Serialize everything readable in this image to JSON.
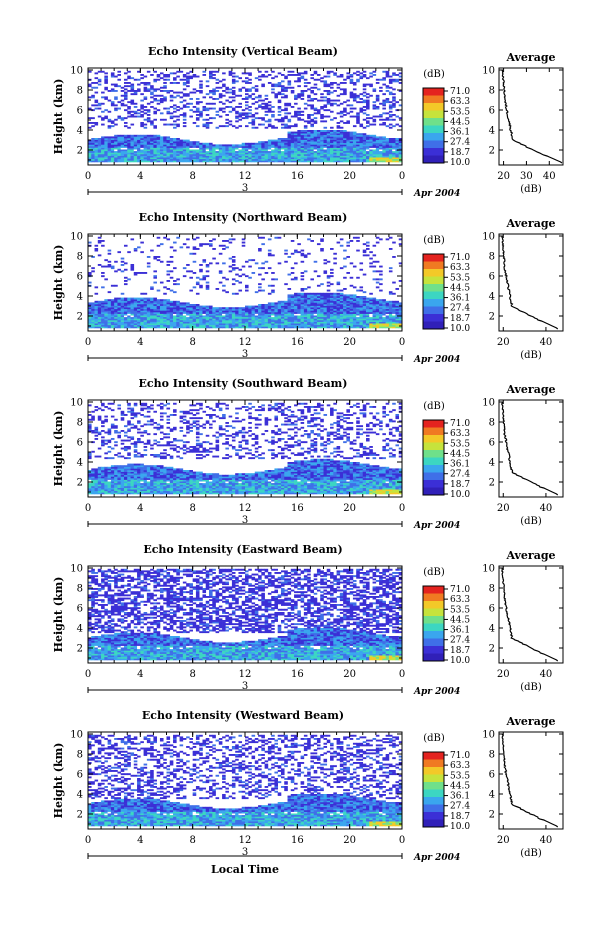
{
  "chart_data": [
    {
      "type": "heatmap",
      "title": "Echo Intensity (Vertical Beam)",
      "xlabel": "",
      "ylabel": "Height (km)",
      "xlim": [
        0,
        24
      ],
      "ylim": [
        0.5,
        10.2
      ],
      "x_ticks": [
        "0",
        "4",
        "8",
        "12",
        "16",
        "20",
        "0"
      ],
      "y_ticks": [
        "2",
        "4",
        "6",
        "8",
        "10"
      ],
      "date_label": "3",
      "date_suffix": "Apr 2004",
      "colorbar": {
        "unit": "(dB)",
        "levels": [
          "71.0",
          "63.3",
          "53.5",
          "44.5",
          "36.1",
          "27.4",
          "18.7",
          "10.0"
        ]
      },
      "average_panel": {
        "title": "Average",
        "xlabel": "(dB)",
        "x_ticks": [
          "20",
          "30",
          "40"
        ],
        "xlim": [
          18,
          46
        ],
        "y_ticks": [
          "2",
          "4",
          "6",
          "8",
          "10"
        ]
      }
    },
    {
      "type": "heatmap",
      "title": "Echo Intensity (Northward Beam)",
      "xlabel": "",
      "ylabel": "Height (km)",
      "xlim": [
        0,
        24
      ],
      "ylim": [
        0.5,
        10.2
      ],
      "x_ticks": [
        "0",
        "4",
        "8",
        "12",
        "16",
        "20",
        "0"
      ],
      "y_ticks": [
        "2",
        "4",
        "6",
        "8",
        "10"
      ],
      "date_label": "3",
      "date_suffix": "Apr 2004",
      "colorbar": {
        "unit": "(dB)",
        "levels": [
          "71.0",
          "63.3",
          "53.5",
          "44.5",
          "36.1",
          "27.4",
          "18.7",
          "10.0"
        ]
      },
      "average_panel": {
        "title": "Average",
        "xlabel": "(dB)",
        "x_ticks": [
          "20",
          "40"
        ],
        "xlim": [
          18,
          48
        ],
        "y_ticks": [
          "2",
          "4",
          "6",
          "8",
          "10"
        ]
      }
    },
    {
      "type": "heatmap",
      "title": "Echo Intensity (Southward Beam)",
      "xlabel": "",
      "ylabel": "Height (km)",
      "xlim": [
        0,
        24
      ],
      "ylim": [
        0.5,
        10.2
      ],
      "x_ticks": [
        "0",
        "4",
        "8",
        "12",
        "16",
        "20",
        "0"
      ],
      "y_ticks": [
        "2",
        "4",
        "6",
        "8",
        "10"
      ],
      "date_label": "3",
      "date_suffix": "Apr 2004",
      "colorbar": {
        "unit": "(dB)",
        "levels": [
          "71.0",
          "63.3",
          "53.5",
          "44.5",
          "36.1",
          "27.4",
          "18.7",
          "10.0"
        ]
      },
      "average_panel": {
        "title": "Average",
        "xlabel": "(dB)",
        "x_ticks": [
          "20",
          "40"
        ],
        "xlim": [
          18,
          48
        ],
        "y_ticks": [
          "2",
          "4",
          "6",
          "8",
          "10"
        ]
      }
    },
    {
      "type": "heatmap",
      "title": "Echo Intensity (Eastward Beam)",
      "xlabel": "",
      "ylabel": "Height (km)",
      "xlim": [
        0,
        24
      ],
      "ylim": [
        0.5,
        10.2
      ],
      "x_ticks": [
        "0",
        "4",
        "8",
        "12",
        "16",
        "20",
        "0"
      ],
      "y_ticks": [
        "2",
        "4",
        "6",
        "8",
        "10"
      ],
      "date_label": "3",
      "date_suffix": "Apr 2004",
      "colorbar": {
        "unit": "(dB)",
        "levels": [
          "71.0",
          "63.3",
          "53.5",
          "44.5",
          "36.1",
          "27.4",
          "18.7",
          "10.0"
        ]
      },
      "average_panel": {
        "title": "Average",
        "xlabel": "(dB)",
        "x_ticks": [
          "20",
          "40"
        ],
        "xlim": [
          18,
          48
        ],
        "y_ticks": [
          "2",
          "4",
          "6",
          "8",
          "10"
        ]
      }
    },
    {
      "type": "heatmap",
      "title": "Echo Intensity (Westward Beam)",
      "xlabel": "Local Time",
      "ylabel": "Height (km)",
      "xlim": [
        0,
        24
      ],
      "ylim": [
        0.5,
        10.2
      ],
      "x_ticks": [
        "0",
        "4",
        "8",
        "12",
        "16",
        "20",
        "0"
      ],
      "y_ticks": [
        "2",
        "4",
        "6",
        "8",
        "10"
      ],
      "date_label": "3",
      "date_suffix": "Apr 2004",
      "colorbar": {
        "unit": "(dB)",
        "levels": [
          "71.0",
          "63.3",
          "53.5",
          "44.5",
          "36.1",
          "27.4",
          "18.7",
          "10.0"
        ]
      },
      "average_panel": {
        "title": "Average",
        "xlabel": "(dB)",
        "x_ticks": [
          "20",
          "40"
        ],
        "xlim": [
          18,
          48
        ],
        "y_ticks": [
          "2",
          "4",
          "6",
          "8",
          "10"
        ]
      }
    }
  ],
  "colors": {
    "scale": [
      "#3b2fd6",
      "#3f6fe8",
      "#3aa6ee",
      "#3cd6c2",
      "#6fe08a",
      "#c6e33c",
      "#f3c928",
      "#f07a22",
      "#e4231f"
    ]
  }
}
